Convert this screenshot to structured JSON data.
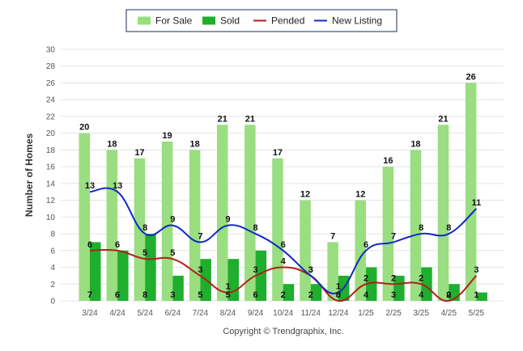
{
  "chart_data": {
    "type": "bar",
    "categories": [
      "3/24",
      "4/24",
      "5/24",
      "6/24",
      "7/24",
      "8/24",
      "9/24",
      "10/24",
      "11/24",
      "12/24",
      "1/25",
      "2/25",
      "3/25",
      "4/25",
      "5/25"
    ],
    "series": [
      {
        "name": "For Sale",
        "kind": "bar",
        "color": "#99de80",
        "values": [
          20,
          18,
          17,
          19,
          18,
          21,
          21,
          17,
          12,
          7,
          12,
          16,
          18,
          21,
          26
        ]
      },
      {
        "name": "Sold",
        "kind": "bar",
        "color": "#1fae2d",
        "values": [
          7,
          6,
          8,
          3,
          5,
          5,
          6,
          2,
          2,
          3,
          4,
          3,
          4,
          2,
          1
        ]
      },
      {
        "name": "Pended",
        "kind": "line",
        "color": "#b0201a",
        "values": [
          6,
          6,
          5,
          5,
          3,
          1,
          3,
          4,
          3,
          0,
          2,
          2,
          2,
          0,
          3
        ]
      },
      {
        "name": "New Listing",
        "kind": "line",
        "color": "#1228c8",
        "values": [
          13,
          13,
          8,
          9,
          7,
          9,
          8,
          6,
          3,
          1,
          6,
          7,
          8,
          8,
          11
        ]
      }
    ],
    "ylabel": "Number of Homes",
    "xlabel": "",
    "ylim": [
      0,
      30
    ],
    "yticks": [
      "0",
      "2",
      "4",
      "6",
      "8",
      "10",
      "12",
      "14",
      "16",
      "18",
      "20",
      "22",
      "24",
      "26",
      "28",
      "30"
    ],
    "grid": true,
    "legend_position": "top-center"
  },
  "footer": {
    "copyright": "Copyright © Trendgraphix, Inc."
  }
}
